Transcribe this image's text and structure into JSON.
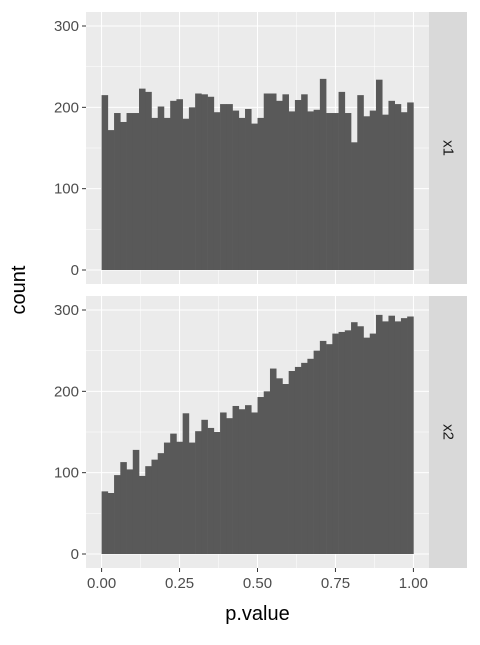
{
  "chart_data": {
    "type": "bar",
    "xlabel": "p.value",
    "ylabel": "count",
    "xlim": [
      -0.05,
      1.05
    ],
    "ylim": [
      0,
      300
    ],
    "x_ticks": [
      0.0,
      0.25,
      0.5,
      0.75,
      1.0
    ],
    "x_tick_labels": [
      "0.00",
      "0.25",
      "0.50",
      "0.75",
      "1.00"
    ],
    "y_ticks": [
      0,
      100,
      200,
      300
    ],
    "y_tick_labels": [
      "0",
      "100",
      "200",
      "300"
    ],
    "bin_start": 0.0,
    "bin_width": 0.02,
    "grid": true,
    "colors": {
      "bar": "#595959",
      "panel_bg": "#ebebeb",
      "grid_major": "#ffffff",
      "strip_bg": "#d9d9d9",
      "tick_text": "#4d4d4d",
      "axis_title": "#000000"
    },
    "panels": [
      {
        "strip_label": "x1",
        "values": [
          215,
          172,
          193,
          182,
          193,
          193,
          223,
          219,
          187,
          201,
          187,
          208,
          210,
          186,
          200,
          217,
          216,
          213,
          194,
          204,
          204,
          196,
          187,
          198,
          180,
          187,
          217,
          217,
          208,
          216,
          195,
          209,
          216,
          195,
          197,
          235,
          193,
          193,
          219,
          193,
          157,
          215,
          189,
          196,
          234,
          191,
          208,
          204,
          194,
          206
        ]
      },
      {
        "strip_label": "x2",
        "values": [
          77,
          75,
          97,
          113,
          104,
          128,
          96,
          108,
          116,
          124,
          137,
          148,
          138,
          173,
          137,
          151,
          165,
          155,
          150,
          174,
          167,
          182,
          178,
          183,
          174,
          193,
          200,
          228,
          216,
          209,
          225,
          230,
          235,
          240,
          250,
          262,
          258,
          271,
          273,
          275,
          285,
          280,
          266,
          271,
          294,
          286,
          293,
          286,
          290,
          292
        ]
      }
    ]
  }
}
